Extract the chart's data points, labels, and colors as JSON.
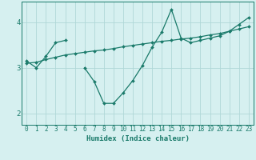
{
  "xlabel": "Humidex (Indice chaleur)",
  "x_values": [
    0,
    1,
    2,
    3,
    4,
    5,
    6,
    7,
    8,
    9,
    10,
    11,
    12,
    13,
    14,
    15,
    16,
    17,
    18,
    19,
    20,
    21,
    22,
    23
  ],
  "line1_y": [
    3.15,
    3.0,
    3.25,
    3.55,
    3.6,
    null,
    3.0,
    2.7,
    2.22,
    2.22,
    2.45,
    2.72,
    3.05,
    3.45,
    3.78,
    4.28,
    3.65,
    3.55,
    3.6,
    3.65,
    3.7,
    3.8,
    3.95,
    4.1
  ],
  "line2_y": [
    3.1,
    3.12,
    3.18,
    3.23,
    3.28,
    3.31,
    3.34,
    3.37,
    3.39,
    3.42,
    3.46,
    3.49,
    3.52,
    3.55,
    3.58,
    3.6,
    3.63,
    3.65,
    3.68,
    3.72,
    3.75,
    3.8,
    3.85,
    3.9
  ],
  "line_color": "#1a7a6a",
  "bg_color": "#d6f0f0",
  "grid_color": "#b0d8d8",
  "ylim": [
    1.75,
    4.45
  ],
  "yticks": [
    2,
    3,
    4
  ],
  "xlim": [
    -0.5,
    23.5
  ],
  "tick_fontsize": 5.5,
  "label_fontsize": 6.5
}
